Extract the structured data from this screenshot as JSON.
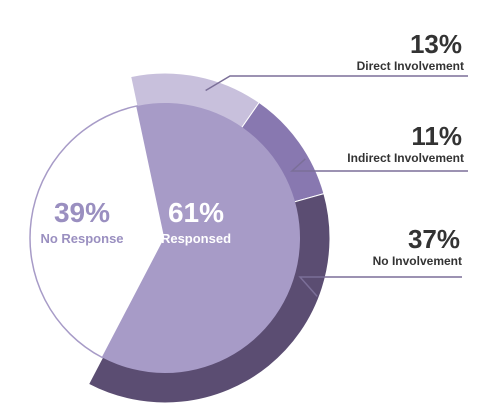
{
  "chart_data": {
    "type": "pie",
    "inner": [
      {
        "label": "No Response",
        "value": 39,
        "display": "39%",
        "color": "#ffffff"
      },
      {
        "label": "Responsed",
        "value": 61,
        "display": "61%",
        "color": "#a79bc7"
      }
    ],
    "outer": [
      {
        "label": "Direct Involvement",
        "value": 13,
        "display": "13%",
        "color": "#c8c0dc"
      },
      {
        "label": "Indirect Involvement",
        "value": 11,
        "display": "11%",
        "color": "#8878b0"
      },
      {
        "label": "No Involvement",
        "value": 37,
        "display": "37%",
        "color": "#5b4d72"
      }
    ],
    "colors": {
      "inner_stroke": "#a79bc7",
      "leader": "#7b6f98",
      "text_dark": "#333333",
      "text_light_purple": "#9a8fc0"
    }
  }
}
